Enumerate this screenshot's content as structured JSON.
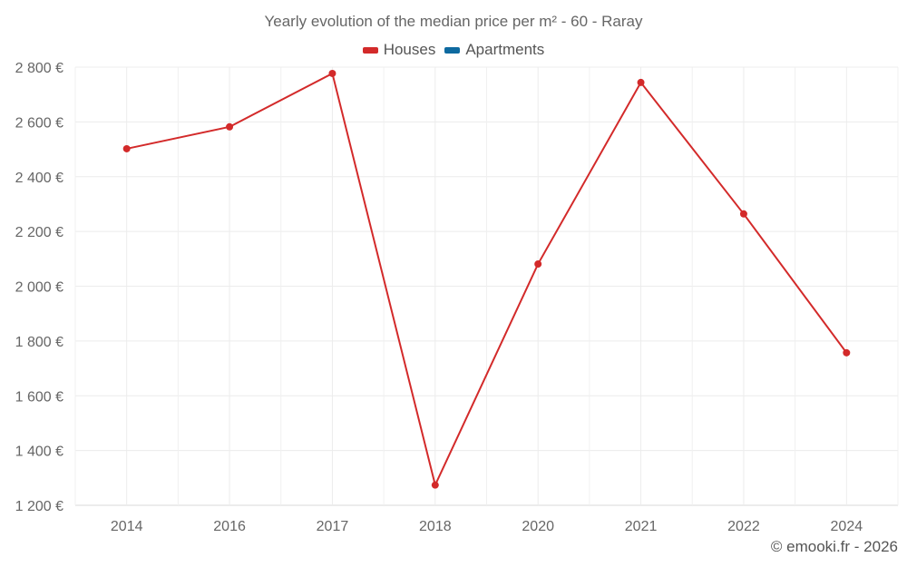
{
  "title": "Yearly evolution of the median price per m² - 60 - Raray",
  "legend": [
    {
      "label": "Houses",
      "color": "#d32a2a"
    },
    {
      "label": "Apartments",
      "color": "#0e6aa0"
    }
  ],
  "credit": "© emooki.fr - 2026",
  "chart_data": {
    "type": "line",
    "title": "Yearly evolution of the median price per m² - 60 - Raray",
    "xlabel": "",
    "ylabel": "",
    "categories": [
      "2014",
      "2016",
      "2017",
      "2018",
      "2020",
      "2021",
      "2022",
      "2024"
    ],
    "series": [
      {
        "name": "Houses",
        "color": "#d32a2a",
        "values": [
          2502,
          2582,
          2777,
          1274,
          2081,
          2744,
          2264,
          1757
        ]
      },
      {
        "name": "Apartments",
        "color": "#0e6aa0",
        "values": []
      }
    ],
    "yticks": [
      "1 200 €",
      "1 400 €",
      "1 600 €",
      "1 800 €",
      "2 000 €",
      "2 200 €",
      "2 400 €",
      "2 600 €",
      "2 800 €"
    ],
    "ylim": [
      1200,
      2800
    ],
    "grid": true,
    "legend_position": "top"
  }
}
